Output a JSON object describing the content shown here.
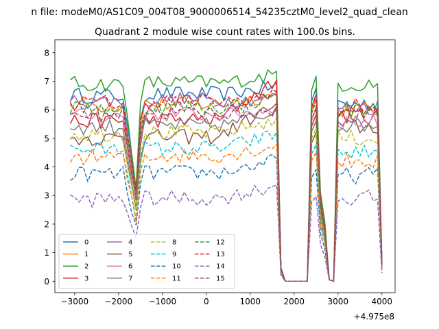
{
  "figure_title": "n file: modeM0/AS1C09_004T08_9000006514_54235cztM0_level2_quad_clean",
  "chart_data": {
    "type": "line",
    "title": "Quadrant 2 module wise count rates with 100.0s bins.",
    "xlabel": "",
    "ylabel": "",
    "x_offset_label": "+4.975e8",
    "xlim": [
      -3450,
      4300
    ],
    "ylim": [
      -0.4,
      8.45
    ],
    "xticks": [
      -3000,
      -2000,
      -1000,
      0,
      1000,
      2000,
      3000,
      4000
    ],
    "xtick_labels": [
      "−3000",
      "−2000",
      "−1000",
      "0",
      "1000",
      "2000",
      "3000",
      "4000"
    ],
    "yticks": [
      0,
      1,
      2,
      3,
      4,
      5,
      6,
      7,
      8
    ],
    "ytick_labels": [
      "0",
      "1",
      "2",
      "3",
      "4",
      "5",
      "6",
      "7",
      "8"
    ],
    "grid": false,
    "legend_position": "lower-left",
    "legend_columns": 4,
    "x": [
      -3100,
      -3000,
      -2900,
      -2800,
      -2700,
      -2600,
      -2500,
      -2400,
      -2300,
      -2200,
      -2100,
      -2000,
      -1900,
      -1800,
      -1700,
      -1600,
      -1500,
      -1400,
      -1300,
      -1200,
      -1100,
      -1000,
      -900,
      -800,
      -700,
      -600,
      -500,
      -400,
      -300,
      -200,
      -100,
      0,
      100,
      200,
      300,
      400,
      500,
      600,
      700,
      800,
      900,
      1000,
      1100,
      1200,
      1300,
      1400,
      1500,
      1600,
      1700,
      1800,
      1900,
      2000,
      2100,
      2200,
      2300,
      2400,
      2500,
      2600,
      2700,
      2800,
      2900,
      3000,
      3100,
      3200,
      3300,
      3400,
      3500,
      3600,
      3700,
      3800,
      3900,
      4000
    ],
    "series": [
      {
        "name": "0",
        "color": "#1f77b4",
        "style": "solid",
        "level": 6.5,
        "dip": 3.2,
        "peak": 6.8,
        "post": 6.2
      },
      {
        "name": "1",
        "color": "#ff7f0e",
        "style": "solid",
        "level": 6.15,
        "dip": 3.0,
        "peak": 6.5,
        "post": 6.0
      },
      {
        "name": "2",
        "color": "#2ca02c",
        "style": "solid",
        "level": 6.9,
        "dip": 3.4,
        "peak": 7.2,
        "post": 6.9
      },
      {
        "name": "3",
        "color": "#d62728",
        "style": "solid",
        "level": 5.6,
        "dip": 2.9,
        "peak": 6.9,
        "post": 5.8
      },
      {
        "name": "4",
        "color": "#9467bd",
        "style": "solid",
        "level": 6.3,
        "dip": 3.0,
        "peak": 6.4,
        "post": 6.1
      },
      {
        "name": "5",
        "color": "#8c564b",
        "style": "solid",
        "level": 5.0,
        "dip": 2.6,
        "peak": 6.1,
        "post": 5.4
      },
      {
        "name": "6",
        "color": "#e377c2",
        "style": "solid",
        "level": 5.8,
        "dip": 2.9,
        "peak": 6.0,
        "post": 5.6
      },
      {
        "name": "7",
        "color": "#7f7f7f",
        "style": "solid",
        "level": 5.4,
        "dip": 2.6,
        "peak": 5.9,
        "post": 5.5
      },
      {
        "name": "8",
        "color": "#bcbd22",
        "style": "dashed",
        "level": 5.15,
        "dip": 2.5,
        "peak": 5.6,
        "post": 5.0
      },
      {
        "name": "9",
        "color": "#17becf",
        "style": "dashed",
        "level": 4.6,
        "dip": 2.3,
        "peak": 5.1,
        "post": 4.5
      },
      {
        "name": "10",
        "color": "#1f77b4",
        "style": "dashed",
        "level": 3.75,
        "dip": 1.9,
        "peak": 4.2,
        "post": 3.7
      },
      {
        "name": "11",
        "color": "#ff7f0e",
        "style": "dashed",
        "level": 4.35,
        "dip": 2.1,
        "peak": 4.7,
        "post": 4.2
      },
      {
        "name": "12",
        "color": "#2ca02c",
        "style": "dashed",
        "level": 6.05,
        "dip": 3.0,
        "peak": 6.4,
        "post": 6.0
      },
      {
        "name": "13",
        "color": "#d62728",
        "style": "dashed",
        "level": 6.25,
        "dip": 3.1,
        "peak": 6.5,
        "post": 6.1
      },
      {
        "name": "14",
        "color": "#9467bd",
        "style": "dashed",
        "level": 2.85,
        "dip": 1.6,
        "peak": 3.3,
        "post": 2.9
      },
      {
        "name": "15",
        "color": "#8c564b",
        "style": "dashed",
        "level": 5.85,
        "dip": 2.9,
        "peak": 6.0,
        "post": 5.8
      }
    ]
  }
}
